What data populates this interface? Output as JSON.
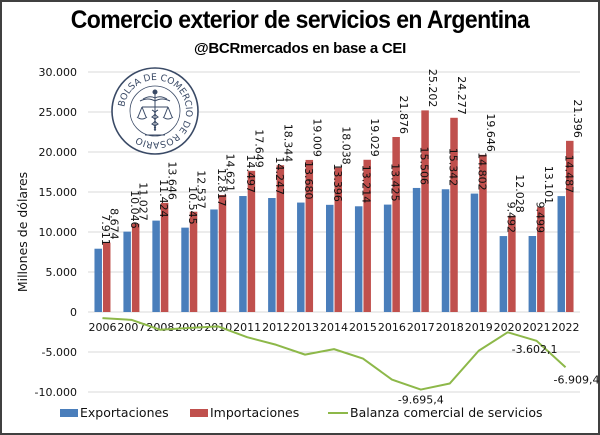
{
  "header": {
    "title": "Comercio exterior de servicios en Argentina",
    "subtitle": "@BCRmercados en base a CEI"
  },
  "logo": {
    "text": "BOLSA DE COMERCIO DE ROSARIO",
    "icon": "caduceus-scales-icon"
  },
  "colors": {
    "exports": "#4a7ebb",
    "imports": "#c0504d",
    "balance": "#8db849",
    "grid": "#d9d9d9"
  },
  "chart_data": {
    "type": "bar",
    "title": "Comercio exterior de servicios en Argentina",
    "subtitle": "@BCRmercados en base a CEI",
    "xlabel": "",
    "ylabel": "Millones de dólares",
    "ylim": [
      -10000,
      30000
    ],
    "yticks": [
      30000,
      25000,
      20000,
      15000,
      10000,
      5000,
      0,
      -5000,
      -10000
    ],
    "ytick_labels": [
      "30.000",
      "25.000",
      "20.000",
      "15.000",
      "10.000",
      "5.000",
      "0",
      "-5.000",
      "-10.000"
    ],
    "grid": true,
    "legend_position": "bottom",
    "categories": [
      "2006",
      "2007",
      "2008",
      "2009",
      "2010",
      "2011",
      "2012",
      "2013",
      "2014",
      "2015",
      "2016",
      "2017",
      "2018",
      "2019",
      "2020",
      "2021",
      "2022"
    ],
    "series": [
      {
        "name": "Exportaciones",
        "type": "bar",
        "values": [
          7911,
          10046,
          11424,
          10545,
          12817,
          14497,
          14247,
          13680,
          13396,
          13214,
          13425,
          15506,
          15342,
          14802,
          9492,
          9499,
          14487
        ],
        "labels": [
          "7.911",
          "10.046",
          "11.424",
          "10.545",
          "12.817",
          "14.497",
          "14.247",
          "13.680",
          "13.396",
          "13.214",
          "13.425",
          "15.506",
          "15.342",
          "14.802",
          "9.492",
          "9.499",
          "14.487"
        ]
      },
      {
        "name": "Importaciones",
        "type": "bar",
        "values": [
          8674,
          11027,
          13646,
          12537,
          14621,
          17649,
          18344,
          19009,
          18038,
          19029,
          21876,
          25202,
          24277,
          19646,
          12028,
          13101,
          21396
        ],
        "labels": [
          "8.674",
          "11.027",
          "13.646",
          "12.537",
          "14.621",
          "17.649",
          "18.344",
          "19.009",
          "18.038",
          "19.029",
          "21.876",
          "25.202",
          "24.277",
          "19.646",
          "12.028",
          "13.101",
          "21.396"
        ]
      },
      {
        "name": "Balanza comercial de servicios",
        "type": "line",
        "values": [
          -763,
          -981,
          -2222,
          -1992,
          -1804,
          -3152,
          -4097,
          -5329,
          -4642,
          -5815,
          -8451,
          -9695.4,
          -8935,
          -4844,
          -2536,
          -3602.1,
          -6909.4
        ],
        "annotations": [
          {
            "category": "2017",
            "label": "-9.695,4"
          },
          {
            "category": "2021",
            "label": "-3.602,1"
          },
          {
            "category": "2022",
            "label": "-6.909,4"
          }
        ]
      }
    ]
  },
  "legend": [
    {
      "label": "Exportaciones",
      "kind": "bar"
    },
    {
      "label": "Importaciones",
      "kind": "bar"
    },
    {
      "label": "Balanza comercial de servicios",
      "kind": "line"
    }
  ]
}
